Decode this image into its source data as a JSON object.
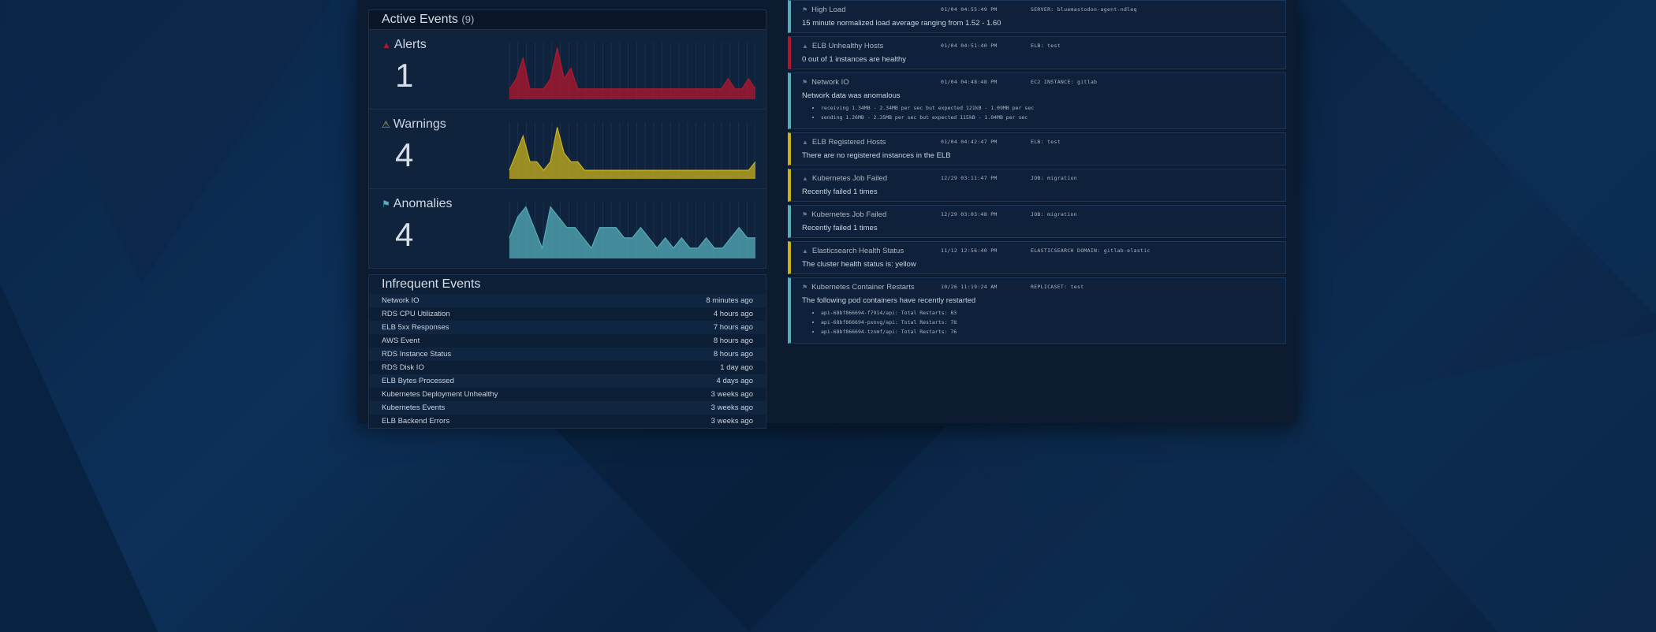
{
  "active_events": {
    "title": "Active Events",
    "count": "(9)",
    "rows": [
      {
        "label": "Alerts",
        "value": "1",
        "icon": "bell-icon",
        "color": "#b3172d"
      },
      {
        "label": "Warnings",
        "value": "4",
        "icon": "warning-icon",
        "color": "#c9b21c"
      },
      {
        "label": "Anomalies",
        "value": "4",
        "icon": "flag-icon",
        "color": "#56adb9"
      }
    ]
  },
  "infrequent_events": {
    "title": "Infrequent Events",
    "items": [
      {
        "name": "Network IO",
        "when": "8 minutes ago"
      },
      {
        "name": "RDS CPU Utilization",
        "when": "4 hours ago"
      },
      {
        "name": "ELB 5xx Responses",
        "when": "7 hours ago"
      },
      {
        "name": "AWS Event",
        "when": "8 hours ago"
      },
      {
        "name": "RDS Instance Status",
        "when": "8 hours ago"
      },
      {
        "name": "RDS Disk IO",
        "when": "1 day ago"
      },
      {
        "name": "ELB Bytes Processed",
        "when": "4 days ago"
      },
      {
        "name": "Kubernetes Deployment Unhealthy",
        "when": "3 weeks ago"
      },
      {
        "name": "Kubernetes Events",
        "when": "3 weeks ago"
      },
      {
        "name": "ELB Backend Errors",
        "when": "3 weeks ago"
      }
    ]
  },
  "event_cards": [
    {
      "title": "High Load",
      "time": "01/04 04:55:49 PM",
      "tag": "SERVER: bluemastodon-agent-ndleq",
      "message": "15 minute normalized load average ranging from 1.52 - 1.60",
      "severity": "teal"
    },
    {
      "title": "ELB Unhealthy Hosts",
      "time": "01/04 04:51:40 PM",
      "tag": "ELB: test",
      "message": "0 out of 1 instances are healthy",
      "severity": "red"
    },
    {
      "title": "Network IO",
      "time": "01/04 04:48:48 PM",
      "tag": "EC2 INSTANCE: gitlab",
      "message": "Network data was anomalous",
      "severity": "teal",
      "details": [
        "receiving 1.34MB - 2.34MB per sec but expected 121kB - 1.09MB per sec",
        "sending 1.26MB - 2.35MB per sec but expected 115kB - 1.04MB per sec"
      ]
    },
    {
      "title": "ELB Registered Hosts",
      "time": "01/04 04:42:47 PM",
      "tag": "ELB: test",
      "message": "There are no registered instances in the ELB",
      "severity": "yellow"
    },
    {
      "title": "Kubernetes Job Failed",
      "time": "12/29 03:11:47 PM",
      "tag": "JOB: migration",
      "message": "Recently failed 1 times",
      "severity": "yellow"
    },
    {
      "title": "Kubernetes Job Failed",
      "time": "12/29 03:03:48 PM",
      "tag": "JOB: migration",
      "message": "Recently failed 1 times",
      "severity": "teal"
    },
    {
      "title": "Elasticsearch Health Status",
      "time": "11/12 12:56:40 PM",
      "tag": "ELASTICSEARCH DOMAIN: gitlab-elastic",
      "message": "The cluster health status is: yellow",
      "severity": "yellow"
    },
    {
      "title": "Kubernetes Container Restarts",
      "time": "10/26 11:19:24 AM",
      "tag": "REPLICASET: test",
      "message": "The following pod containers have recently restarted",
      "severity": "teal",
      "details": [
        "api-68bf866694-f7914/api: Total Restarts: 83",
        "api-68bf866694-pxnvg/api: Total Restarts: 78",
        "api-68bf866694-tznmf/api: Total Restarts: 76"
      ]
    }
  ],
  "colors": {
    "alert": "#b3172d",
    "warning": "#c9b21c",
    "anomaly": "#56adb9"
  },
  "chart_data": [
    {
      "type": "area",
      "series": [
        {
          "values": [
            1,
            2,
            4,
            1,
            1,
            1,
            2,
            5,
            2,
            3,
            1,
            1,
            1,
            1,
            1,
            1,
            1,
            1,
            1,
            1,
            1,
            1,
            1,
            1,
            1,
            1,
            1,
            1,
            1,
            1,
            1,
            1,
            2,
            1,
            1,
            2,
            1
          ]
        }
      ]
    },
    {
      "type": "area",
      "series": [
        {
          "values": [
            1,
            3,
            5,
            2,
            2,
            1,
            2,
            6,
            3,
            2,
            2,
            1,
            1,
            1,
            1,
            1,
            1,
            1,
            1,
            1,
            1,
            1,
            1,
            1,
            1,
            1,
            1,
            1,
            1,
            1,
            1,
            1,
            1,
            1,
            1,
            1,
            2
          ]
        }
      ]
    },
    {
      "type": "area",
      "series": [
        {
          "values": [
            2,
            4,
            5,
            3,
            1,
            5,
            4,
            3,
            3,
            2,
            1,
            3,
            3,
            3,
            2,
            2,
            3,
            2,
            1,
            2,
            1,
            2,
            1,
            1,
            2,
            1,
            1,
            2,
            3,
            2,
            2
          ]
        }
      ]
    }
  ]
}
